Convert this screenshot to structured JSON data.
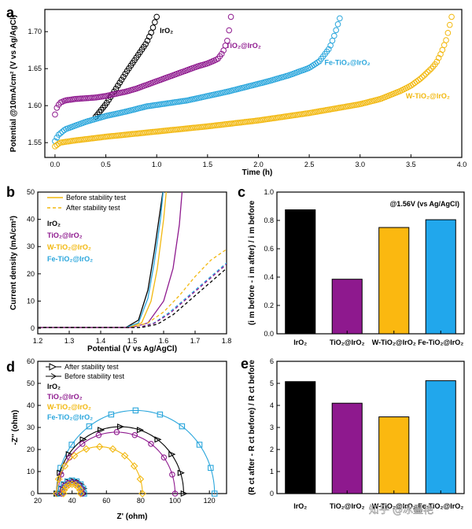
{
  "colors": {
    "IrO2": "#000000",
    "TiO2@IrO2": "#8e198e",
    "W-TiO2@IrO2": "#f2b80f",
    "Fe-TiO2@IrO2": "#2aa6dc",
    "bar_W": "#fbb810",
    "bar_Fe": "#21a7ec"
  },
  "watermark": "知乎 @冰墨艳",
  "chart_data": [
    {
      "panel": "a",
      "type": "scatter",
      "xlabel": "Time (h)",
      "ylabel": "Potential @10mA/cm² (V vs Ag/AgCl)",
      "xlim": [
        -0.1,
        4.0
      ],
      "ylim": [
        1.53,
        1.73
      ],
      "xticks": [
        "0.0",
        "0.5",
        "1.0",
        "1.5",
        "2.0",
        "2.5",
        "3.0",
        "3.5",
        "4.0"
      ],
      "yticks": [
        "1.55",
        "1.60",
        "1.65",
        "1.70"
      ],
      "series": [
        {
          "name": "IrO2",
          "color_key": "IrO2",
          "x": [
            0.4,
            0.5,
            0.6,
            0.7,
            0.8,
            0.9,
            0.95,
            1.0
          ],
          "y": [
            1.585,
            1.602,
            1.623,
            1.645,
            1.665,
            1.685,
            1.7,
            1.72
          ]
        },
        {
          "name": "TiO2@IrO2",
          "color_key": "TiO2@IrO2",
          "x": [
            0.0,
            0.02,
            0.05,
            0.1,
            0.2,
            0.3,
            0.4,
            0.5,
            0.6,
            0.7,
            0.8,
            0.9,
            1.0,
            1.1,
            1.2,
            1.3,
            1.4,
            1.5,
            1.6,
            1.65,
            1.7,
            1.73
          ],
          "y": [
            1.588,
            1.598,
            1.604,
            1.607,
            1.609,
            1.61,
            1.611,
            1.613,
            1.616,
            1.619,
            1.623,
            1.628,
            1.633,
            1.638,
            1.643,
            1.648,
            1.653,
            1.657,
            1.663,
            1.672,
            1.69,
            1.72
          ]
        },
        {
          "name": "Fe-TiO2@IrO2",
          "color_key": "Fe-TiO2@IrO2",
          "x": [
            0.0,
            0.03,
            0.1,
            0.3,
            0.5,
            0.7,
            0.9,
            1.1,
            1.3,
            1.5,
            1.7,
            1.9,
            2.1,
            2.3,
            2.5,
            2.6,
            2.7,
            2.75,
            2.8
          ],
          "y": [
            1.552,
            1.56,
            1.568,
            1.578,
            1.586,
            1.592,
            1.599,
            1.603,
            1.607,
            1.613,
            1.619,
            1.626,
            1.633,
            1.641,
            1.651,
            1.66,
            1.678,
            1.696,
            1.718
          ]
        },
        {
          "name": "W-TiO2@IrO2",
          "color_key": "W-TiO2@IrO2",
          "x": [
            0.0,
            0.05,
            0.2,
            0.5,
            1.0,
            1.5,
            2.0,
            2.5,
            3.0,
            3.2,
            3.4,
            3.5,
            3.6,
            3.7,
            3.75,
            3.8,
            3.85,
            3.9
          ],
          "y": [
            1.545,
            1.55,
            1.553,
            1.558,
            1.565,
            1.572,
            1.58,
            1.59,
            1.602,
            1.609,
            1.62,
            1.627,
            1.637,
            1.65,
            1.658,
            1.672,
            1.69,
            1.72
          ]
        }
      ],
      "labels": [
        {
          "text": "IrO₂",
          "color_key": "IrO2",
          "x": 1.03,
          "y": 1.698
        },
        {
          "text": "TiO₂@IrO₂",
          "color_key": "TiO2@IrO2",
          "x": 1.68,
          "y": 1.678
        },
        {
          "text": "Fe-TiO₂@IrO₂",
          "color_key": "Fe-TiO2@IrO2",
          "x": 2.65,
          "y": 1.655
        },
        {
          "text": "W-TiO₂@IrO₂",
          "color_key": "W-TiO2@IrO2",
          "x": 3.45,
          "y": 1.61
        }
      ]
    },
    {
      "panel": "b",
      "type": "line",
      "xlabel": "Potential (V vs Ag/AgCl)",
      "ylabel": "Current density (mA/cm²)",
      "xlim": [
        1.2,
        1.8
      ],
      "ylim": [
        -2,
        50
      ],
      "xticks": [
        "1.2",
        "1.3",
        "1.4",
        "1.5",
        "1.6",
        "1.7",
        "1.8"
      ],
      "yticks": [
        "0",
        "10",
        "20",
        "30",
        "40",
        "50"
      ],
      "legend": [
        {
          "text": "Before stability test",
          "style": "solid"
        },
        {
          "text": "After stability test",
          "style": "dashed"
        }
      ],
      "legend_series": [
        "IrO₂",
        "TiO₂@IrO₂",
        "W-TiO₂@IrO₂",
        "Fe-TiO₂@IrO₂"
      ],
      "series": [
        {
          "name": "IrO2 before",
          "color_key": "IrO2",
          "style": "solid",
          "x": [
            1.2,
            1.48,
            1.52,
            1.55,
            1.57,
            1.585,
            1.6
          ],
          "y": [
            0.3,
            0.3,
            3,
            14,
            28,
            40,
            52
          ]
        },
        {
          "name": "Fe before",
          "color_key": "Fe-TiO2@IrO2",
          "style": "solid",
          "x": [
            1.2,
            1.48,
            1.52,
            1.55,
            1.57,
            1.59,
            1.6
          ],
          "y": [
            0.3,
            0.3,
            2,
            11,
            24,
            40,
            52
          ]
        },
        {
          "name": "W before",
          "color_key": "W-TiO2@IrO2",
          "style": "solid",
          "x": [
            1.2,
            1.49,
            1.53,
            1.56,
            1.58,
            1.6,
            1.61
          ],
          "y": [
            0.3,
            0.3,
            2,
            10,
            22,
            40,
            52
          ]
        },
        {
          "name": "TiO2 before",
          "color_key": "TiO2@IrO2",
          "style": "solid",
          "x": [
            1.2,
            1.5,
            1.55,
            1.6,
            1.63,
            1.65,
            1.66
          ],
          "y": [
            0.3,
            0.3,
            2,
            10,
            22,
            38,
            52
          ]
        },
        {
          "name": "W after",
          "color_key": "W-TiO2@IrO2",
          "style": "dashed",
          "x": [
            1.2,
            1.5,
            1.55,
            1.6,
            1.65,
            1.7,
            1.75,
            1.8
          ],
          "y": [
            0.3,
            0.3,
            2,
            6,
            12,
            19,
            25,
            29
          ]
        },
        {
          "name": "Fe after",
          "color_key": "Fe-TiO2@IrO2",
          "style": "dashed",
          "x": [
            1.2,
            1.52,
            1.57,
            1.62,
            1.67,
            1.72,
            1.77,
            1.8
          ],
          "y": [
            0.3,
            0.3,
            2,
            6,
            11,
            16,
            21,
            24
          ]
        },
        {
          "name": "TiO2 after",
          "color_key": "TiO2@IrO2",
          "style": "dashed",
          "x": [
            1.2,
            1.52,
            1.57,
            1.62,
            1.67,
            1.72,
            1.77,
            1.8
          ],
          "y": [
            0.3,
            0.3,
            1.8,
            5.5,
            10.5,
            15.5,
            20.5,
            23.5
          ]
        },
        {
          "name": "IrO2 after",
          "color_key": "IrO2",
          "style": "dashed",
          "x": [
            1.2,
            1.53,
            1.58,
            1.63,
            1.68,
            1.73,
            1.78,
            1.8
          ],
          "y": [
            0.3,
            0.3,
            1.5,
            5,
            10,
            15,
            20,
            22
          ]
        }
      ]
    },
    {
      "panel": "c",
      "type": "bar",
      "annotation": "@1.56V (vs Ag/AgCl)",
      "ylabel": "(i m before - i m after) / i m before",
      "ylim": [
        0,
        1.0
      ],
      "yticks": [
        "0.0",
        "0.2",
        "0.4",
        "0.6",
        "0.8",
        "1.0"
      ],
      "categories": [
        "IrO₂",
        "TiO₂@IrO₂",
        "W-TiO₂@IrO₂",
        "Fe-TiO₂@IrO₂"
      ],
      "values": [
        0.875,
        0.385,
        0.75,
        0.805
      ],
      "color_keys": [
        "IrO2",
        "TiO2@IrO2",
        "bar_W",
        "bar_Fe"
      ]
    },
    {
      "panel": "d",
      "type": "scatter",
      "xlabel": "Z' (ohm)",
      "ylabel": "-Z'' (ohm)",
      "xlim": [
        20,
        130
      ],
      "ylim": [
        0,
        60
      ],
      "xticks": [
        "20",
        "40",
        "60",
        "80",
        "100",
        "120"
      ],
      "yticks": [
        "0",
        "10",
        "20",
        "30",
        "40",
        "50",
        "60"
      ],
      "legend": [
        {
          "text": "After stability test",
          "marker": "triangle-right"
        },
        {
          "text": "Before stability test",
          "marker": "triangle-right-line"
        }
      ],
      "legend_series": [
        "IrO₂",
        "TiO₂@IrO₂",
        "W-TiO₂@IrO₂",
        "Fe-TiO₂@IrO₂"
      ],
      "series": [
        {
          "name": "Fe after",
          "color_key": "Fe-TiO2@IrO2",
          "marker": "square",
          "center": 77,
          "radius": 46
        },
        {
          "name": "IrO2 after",
          "color_key": "IrO2",
          "marker": "triangle",
          "center": 68,
          "radius": 37
        },
        {
          "name": "TiO2 after",
          "color_key": "TiO2@IrO2",
          "marker": "circle",
          "center": 66,
          "radius": 34
        },
        {
          "name": "W after",
          "color_key": "W-TiO2@IrO2",
          "marker": "diamond",
          "center": 56,
          "radius": 25
        },
        {
          "name": "IrO2 before",
          "color_key": "IrO2",
          "marker": "triangle",
          "center": 40,
          "radius": 7
        },
        {
          "name": "Fe before",
          "color_key": "Fe-TiO2@IrO2",
          "marker": "square",
          "center": 40,
          "radius": 7
        },
        {
          "name": "TiO2 before",
          "color_key": "TiO2@IrO2",
          "marker": "circle",
          "center": 40,
          "radius": 6
        },
        {
          "name": "W before",
          "color_key": "W-TiO2@IrO2",
          "marker": "diamond",
          "center": 40,
          "radius": 5
        }
      ]
    },
    {
      "panel": "e",
      "type": "bar",
      "ylabel": "(R ct after - R ct before) / R ct before",
      "ylim": [
        0,
        6
      ],
      "yticks": [
        "0",
        "1",
        "2",
        "3",
        "4",
        "5",
        "6"
      ],
      "categories": [
        "IrO₂",
        "TiO₂@IrO₂",
        "W-TiO₂@IrO₂",
        "Fe-TiO₂@IrO₂"
      ],
      "values": [
        5.08,
        4.1,
        3.48,
        5.12
      ],
      "color_keys": [
        "IrO2",
        "TiO2@IrO2",
        "bar_W",
        "bar_Fe"
      ]
    }
  ]
}
